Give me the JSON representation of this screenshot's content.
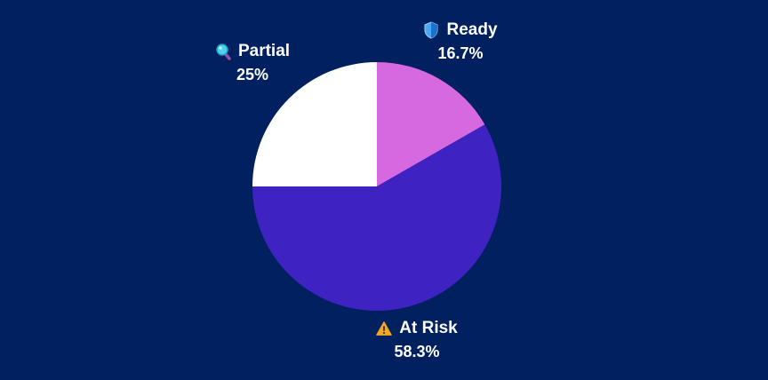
{
  "chart_data": {
    "type": "pie",
    "title": "",
    "start_angle_deg": 0,
    "direction": "clockwise",
    "slices": [
      {
        "label": "Ready",
        "value": 16.7,
        "display": "16.7%",
        "color": "#d668e0",
        "icon": "shield-icon"
      },
      {
        "label": "At Risk",
        "value": 58.3,
        "display": "58.3%",
        "color": "#3f22c2",
        "icon": "warning-icon"
      },
      {
        "label": "Partial",
        "value": 25,
        "display": "25%",
        "color": "#ffffff",
        "icon": "magnifier-icon"
      }
    ],
    "background": "#00205f",
    "legend": "none (inline labels)"
  },
  "labels": {
    "ready": {
      "name": "Ready",
      "pct": "16.7%"
    },
    "at_risk": {
      "name": "At Risk",
      "pct": "58.3%"
    },
    "partial": {
      "name": "Partial",
      "pct": "25%"
    }
  }
}
